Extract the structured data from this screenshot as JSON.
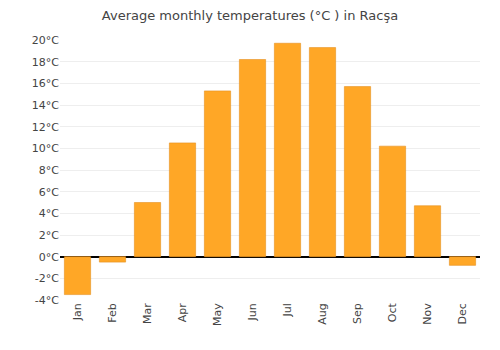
{
  "chart_data": {
    "type": "bar",
    "title": "Average monthly temperatures (°C ) in Racşa",
    "categories": [
      "Jan",
      "Feb",
      "Mar",
      "Apr",
      "May",
      "Jun",
      "Jul",
      "Aug",
      "Sep",
      "Oct",
      "Nov",
      "Dec"
    ],
    "values": [
      -3.5,
      -0.5,
      5.0,
      10.5,
      15.3,
      18.2,
      19.7,
      19.3,
      15.7,
      10.2,
      4.7,
      -0.8
    ],
    "color": "#FFA726",
    "ylim": [
      -4,
      20
    ],
    "yticks": [
      {
        "value": -4,
        "label": "-4°C"
      },
      {
        "value": -2,
        "label": "-2°C"
      },
      {
        "value": 0,
        "label": "0°C"
      },
      {
        "value": 2,
        "label": "2°C"
      },
      {
        "value": 4,
        "label": "4°C"
      },
      {
        "value": 6,
        "label": "6°C"
      },
      {
        "value": 8,
        "label": "8°C"
      },
      {
        "value": 10,
        "label": "10°C"
      },
      {
        "value": 12,
        "label": "12°C"
      },
      {
        "value": 14,
        "label": "14°C"
      },
      {
        "value": 16,
        "label": "16°C"
      },
      {
        "value": 18,
        "label": "18°C"
      },
      {
        "value": 20,
        "label": "20°C"
      }
    ],
    "grid": true
  }
}
